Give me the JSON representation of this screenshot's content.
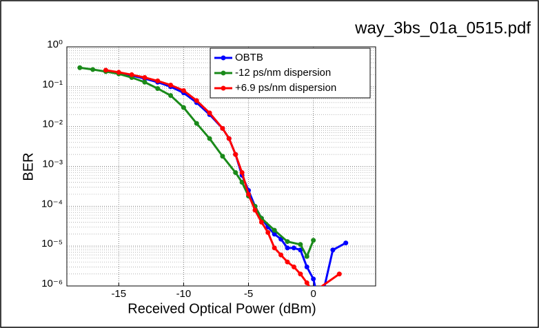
{
  "file_label": "way_3bs_01a_0515.pdf",
  "chart_data": {
    "type": "line",
    "xlabel": "Received Optical Power (dBm)",
    "ylabel": "BER",
    "log_y": true,
    "grid": true,
    "legend": "upper right",
    "xlim": [
      -19,
      4.8
    ],
    "xticks": [
      -15,
      -10,
      -5,
      0
    ],
    "ylim": [
      1e-06,
      1
    ],
    "yticks": [
      {
        "value": 1e-06,
        "label": "10⁻⁶"
      },
      {
        "value": 1e-05,
        "label": "10⁻⁵"
      },
      {
        "value": 0.0001,
        "label": "10⁻⁴"
      },
      {
        "value": 0.001,
        "label": "10⁻³"
      },
      {
        "value": 0.01,
        "label": "10⁻²"
      },
      {
        "value": 0.1,
        "label": "10⁻¹"
      },
      {
        "value": 1,
        "label": "10⁰"
      }
    ],
    "series": [
      {
        "name": "OBTB",
        "color": "#0000ff",
        "x": [
          -16,
          -15,
          -14,
          -13,
          -12,
          -11,
          -10,
          -9,
          -8,
          -7,
          -6.5,
          -6,
          -5.5,
          -5,
          -4.5,
          -4,
          -3.5,
          -3,
          -2.5,
          -2,
          -1.5,
          -1,
          -0.5,
          0,
          0.5,
          1.5,
          2.5
        ],
        "values": [
          0.25,
          0.22,
          0.19,
          0.16,
          0.13,
          0.1,
          0.07,
          0.04,
          0.02,
          0.009,
          0.005,
          0.002,
          0.0006,
          0.00025,
          0.0001,
          5e-05,
          3e-05,
          2e-05,
          1.5e-05,
          9e-06,
          9e-06,
          8e-06,
          3e-06,
          1.5e-06,
          3e-07,
          8e-06,
          1.2e-05
        ]
      },
      {
        "name": "-12 ps/nm dispersion",
        "color": "#1a8a1a",
        "x": [
          -18,
          -17,
          -16,
          -15,
          -14,
          -13,
          -12,
          -11,
          -10,
          -9,
          -8,
          -7,
          -6,
          -5.5,
          -5,
          -4.5,
          -4,
          -3,
          -2,
          -1,
          -0.5,
          0
        ],
        "values": [
          0.3,
          0.27,
          0.24,
          0.21,
          0.17,
          0.13,
          0.09,
          0.06,
          0.03,
          0.012,
          0.005,
          0.0018,
          0.0007,
          0.0004,
          0.00018,
          0.0001,
          5e-05,
          2.5e-05,
          1.3e-05,
          1.1e-05,
          5.5e-06,
          1.4e-05
        ]
      },
      {
        "name": "+6.9 ps/nm dispersion",
        "color": "#ff0000",
        "x": [
          -16,
          -15,
          -14,
          -13,
          -12,
          -11,
          -10,
          -9,
          -8,
          -7,
          -6.5,
          -6,
          -5.5,
          -5,
          -4.5,
          -4,
          -3.5,
          -3,
          -2.5,
          -2,
          -1.5,
          -1,
          -0.5,
          0,
          2
        ],
        "values": [
          0.26,
          0.23,
          0.2,
          0.17,
          0.14,
          0.11,
          0.08,
          0.045,
          0.022,
          0.009,
          0.005,
          0.002,
          0.0007,
          0.0002,
          8e-05,
          4e-05,
          2.2e-05,
          9e-06,
          6e-06,
          4e-06,
          3e-06,
          2e-06,
          1.2e-06,
          7e-07,
          2e-06
        ]
      }
    ]
  }
}
